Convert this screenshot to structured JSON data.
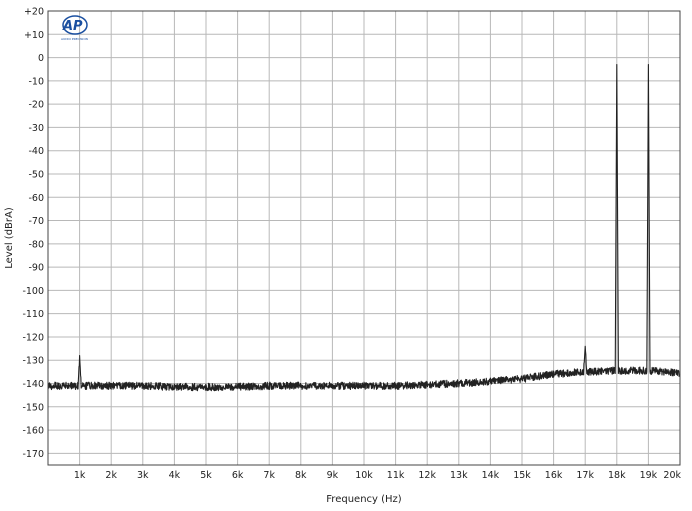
{
  "chart_data": {
    "type": "line",
    "title": "",
    "xlabel": "Frequency (Hz)",
    "ylabel": "Level (dBrA)",
    "xlim": [
      0,
      20000
    ],
    "ylim": [
      -175,
      20
    ],
    "grid": true,
    "x_ticks": [
      {
        "value": 1000,
        "label": "1k"
      },
      {
        "value": 2000,
        "label": "2k"
      },
      {
        "value": 3000,
        "label": "3k"
      },
      {
        "value": 4000,
        "label": "4k"
      },
      {
        "value": 5000,
        "label": "5k"
      },
      {
        "value": 6000,
        "label": "6k"
      },
      {
        "value": 7000,
        "label": "7k"
      },
      {
        "value": 8000,
        "label": "8k"
      },
      {
        "value": 9000,
        "label": "9k"
      },
      {
        "value": 10000,
        "label": "10k"
      },
      {
        "value": 11000,
        "label": "11k"
      },
      {
        "value": 12000,
        "label": "12k"
      },
      {
        "value": 13000,
        "label": "13k"
      },
      {
        "value": 14000,
        "label": "14k"
      },
      {
        "value": 15000,
        "label": "15k"
      },
      {
        "value": 16000,
        "label": "16k"
      },
      {
        "value": 17000,
        "label": "17k"
      },
      {
        "value": 18000,
        "label": "18k"
      },
      {
        "value": 19000,
        "label": "19k"
      },
      {
        "value": 20000,
        "label": "20k"
      }
    ],
    "y_ticks": [
      {
        "value": 20,
        "label": "+20"
      },
      {
        "value": 10,
        "label": "+10"
      },
      {
        "value": 0,
        "label": "0"
      },
      {
        "value": -10,
        "label": "-10"
      },
      {
        "value": -20,
        "label": "-20"
      },
      {
        "value": -30,
        "label": "-30"
      },
      {
        "value": -40,
        "label": "-40"
      },
      {
        "value": -50,
        "label": "-50"
      },
      {
        "value": -60,
        "label": "-60"
      },
      {
        "value": -70,
        "label": "-70"
      },
      {
        "value": -80,
        "label": "-80"
      },
      {
        "value": -90,
        "label": "-90"
      },
      {
        "value": -100,
        "label": "-100"
      },
      {
        "value": -110,
        "label": "-110"
      },
      {
        "value": -120,
        "label": "-120"
      },
      {
        "value": -130,
        "label": "-130"
      },
      {
        "value": -140,
        "label": "-140"
      },
      {
        "value": -150,
        "label": "-150"
      },
      {
        "value": -160,
        "label": "-160"
      },
      {
        "value": -170,
        "label": "-170"
      }
    ],
    "series": [
      {
        "color": "#222222",
        "points": [
          [
            20,
            -141
          ],
          [
            500,
            -141
          ],
          [
            950,
            -141
          ],
          [
            1000,
            -128
          ],
          [
            1050,
            -141
          ],
          [
            2000,
            -141
          ],
          [
            3000,
            -141
          ],
          [
            4000,
            -141.5
          ],
          [
            5000,
            -141.5
          ],
          [
            6000,
            -141.5
          ],
          [
            7000,
            -141
          ],
          [
            8000,
            -141
          ],
          [
            9000,
            -141
          ],
          [
            10000,
            -141
          ],
          [
            11000,
            -141
          ],
          [
            12000,
            -140.5
          ],
          [
            13000,
            -140
          ],
          [
            14000,
            -139
          ],
          [
            15000,
            -138
          ],
          [
            16000,
            -136
          ],
          [
            16950,
            -135
          ],
          [
            17000,
            -124
          ],
          [
            17050,
            -135
          ],
          [
            17950,
            -134.5
          ],
          [
            18000,
            -3
          ],
          [
            18050,
            -134.5
          ],
          [
            18950,
            -134.5
          ],
          [
            19000,
            -3
          ],
          [
            19050,
            -134.5
          ],
          [
            20000,
            -135.5
          ]
        ]
      }
    ],
    "logo": {
      "text": "AP",
      "caption": "AUDIO PRECISION"
    }
  }
}
